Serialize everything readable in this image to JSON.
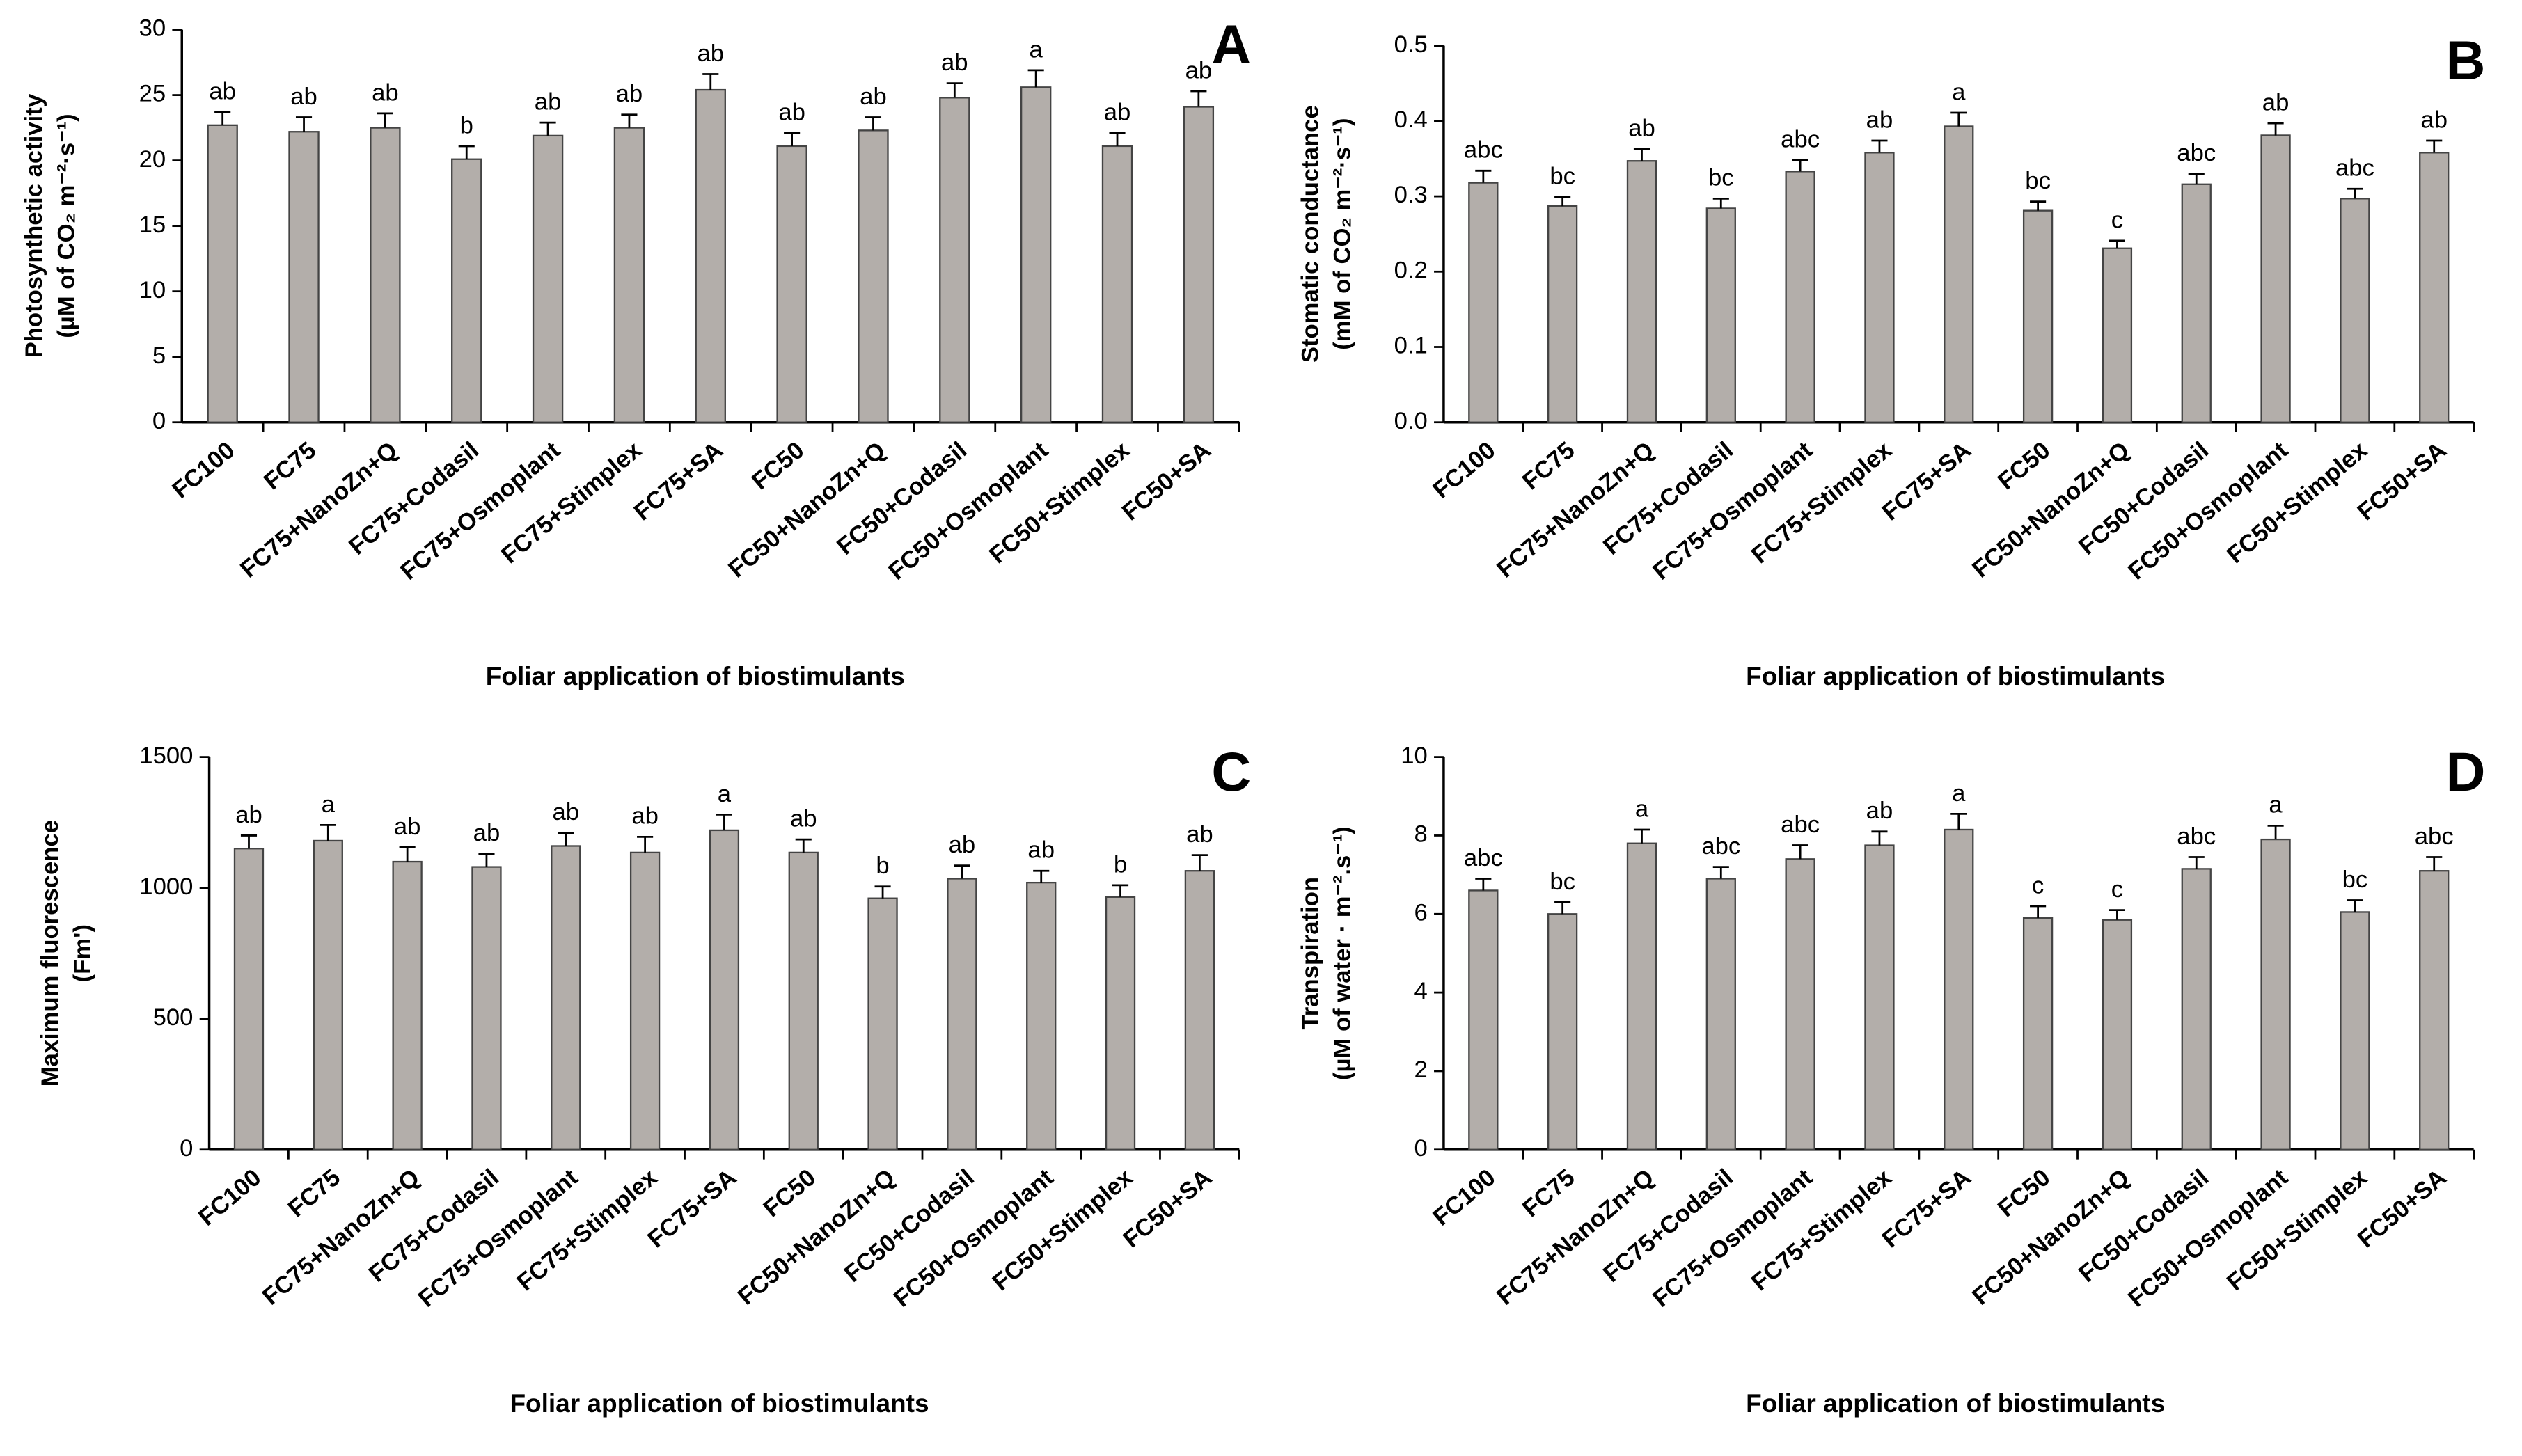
{
  "chart_data": [
    {
      "type": "bar",
      "panel": "A",
      "y_label": [
        "Photosynthetic activity",
        "(µM of CO₂ m⁻²·s⁻¹)"
      ],
      "x_label": "Foliar application of biostimulants",
      "categories": [
        "FC100",
        "FC75",
        "FC75+NanoZn+Q",
        "FC75+Codasil",
        "FC75+Osmoplant",
        "FC75+Stimplex",
        "FC75+SA",
        "FC50",
        "FC50+NanoZn+Q",
        "FC50+Codasil",
        "FC50+Osmoplant",
        "FC50+Stimplex",
        "FC50+SA"
      ],
      "values": [
        22.7,
        22.2,
        22.5,
        20.1,
        21.9,
        22.5,
        25.4,
        21.1,
        22.3,
        24.8,
        25.6,
        21.1,
        24.1
      ],
      "errors": [
        1.0,
        1.1,
        1.1,
        1.0,
        1.0,
        1.0,
        1.2,
        1.0,
        1.0,
        1.1,
        1.3,
        1.0,
        1.2
      ],
      "letters": [
        "ab",
        "ab",
        "ab",
        "b",
        "ab",
        "ab",
        "ab",
        "ab",
        "ab",
        "ab",
        "a",
        "ab",
        "ab"
      ],
      "color": "#b3aeaa",
      "ylim": [
        0,
        30
      ],
      "yticks": [
        0,
        5,
        10,
        15,
        20,
        25,
        30
      ]
    },
    {
      "type": "bar",
      "panel": "B",
      "y_label": [
        "Stomatic conductance",
        "(mM of CO₂ m⁻²·s⁻¹)"
      ],
      "x_label": "Foliar application of biostimulants",
      "categories": [
        "FC100",
        "FC75",
        "FC75+NanoZn+Q",
        "FC75+Codasil",
        "FC75+Osmoplant",
        "FC75+Stimplex",
        "FC75+SA",
        "FC50",
        "FC50+NanoZn+Q",
        "FC50+Codasil",
        "FC50+Osmoplant",
        "FC50+Stimplex",
        "FC50+SA"
      ],
      "values": [
        0.318,
        0.287,
        0.347,
        0.284,
        0.333,
        0.358,
        0.393,
        0.281,
        0.231,
        0.316,
        0.381,
        0.297,
        0.358
      ],
      "errors": [
        0.016,
        0.012,
        0.016,
        0.013,
        0.015,
        0.016,
        0.018,
        0.012,
        0.01,
        0.014,
        0.016,
        0.013,
        0.016
      ],
      "letters": [
        "abc",
        "bc",
        "ab",
        "bc",
        "abc",
        "ab",
        "a",
        "bc",
        "c",
        "abc",
        "ab",
        "abc",
        "ab"
      ],
      "color": "#b3aeaa",
      "ylim": [
        0,
        0.5
      ],
      "yticks": [
        {
          "value": 0,
          "label": "0.0"
        },
        0.1,
        0.2,
        0.3,
        0.4,
        0.5
      ]
    },
    {
      "type": "bar",
      "panel": "C",
      "y_label": [
        "Maximum fluorescence",
        "(Fm')"
      ],
      "x_label": "Foliar application of biostimulants",
      "categories": [
        "FC100",
        "FC75",
        "FC75+NanoZn+Q",
        "FC75+Codasil",
        "FC75+Osmoplant",
        "FC75+Stimplex",
        "FC75+SA",
        "FC50",
        "FC50+NanoZn+Q",
        "FC50+Codasil",
        "FC50+Osmoplant",
        "FC50+Stimplex",
        "FC50+SA"
      ],
      "values": [
        1150,
        1180,
        1100,
        1080,
        1160,
        1135,
        1220,
        1135,
        960,
        1035,
        1020,
        965,
        1065
      ],
      "errors": [
        50,
        60,
        55,
        50,
        50,
        60,
        60,
        50,
        45,
        50,
        45,
        45,
        60
      ],
      "letters": [
        "ab",
        "a",
        "ab",
        "ab",
        "ab",
        "ab",
        "a",
        "ab",
        "b",
        "ab",
        "ab",
        "b",
        "ab"
      ],
      "color": "#b3aeaa",
      "ylim": [
        0,
        1500
      ],
      "yticks": [
        0,
        500,
        1000,
        1500
      ]
    },
    {
      "type": "bar",
      "panel": "D",
      "y_label": [
        "Transpiration",
        "(µM of water · m⁻².s⁻¹)"
      ],
      "x_label": "Foliar application of biostimulants",
      "categories": [
        "FC100",
        "FC75",
        "FC75+NanoZn+Q",
        "FC75+Codasil",
        "FC75+Osmoplant",
        "FC75+Stimplex",
        "FC75+SA",
        "FC50",
        "FC50+NanoZn+Q",
        "FC50+Codasil",
        "FC50+Osmoplant",
        "FC50+Stimplex",
        "FC50+SA"
      ],
      "values": [
        6.6,
        6.0,
        7.8,
        6.9,
        7.4,
        7.75,
        8.15,
        5.9,
        5.85,
        7.15,
        7.9,
        6.05,
        7.1
      ],
      "errors": [
        0.3,
        0.3,
        0.35,
        0.3,
        0.35,
        0.35,
        0.4,
        0.3,
        0.25,
        0.3,
        0.35,
        0.3,
        0.35
      ],
      "letters": [
        "abc",
        "bc",
        "a",
        "abc",
        "abc",
        "ab",
        "a",
        "c",
        "c",
        "abc",
        "a",
        "bc",
        "abc"
      ],
      "color": "#b3aeaa",
      "ylim": [
        0,
        10
      ],
      "yticks": [
        0,
        2,
        4,
        6,
        8,
        10
      ]
    }
  ]
}
